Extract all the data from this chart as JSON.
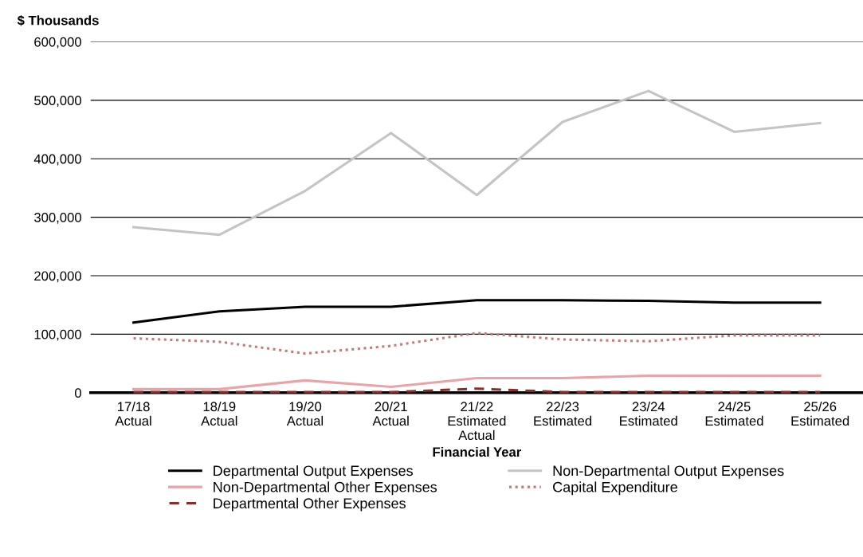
{
  "chart_data": {
    "type": "line",
    "ylabel": "$ Thousands",
    "xlabel": "Financial Year",
    "categories": [
      "17/18\nActual",
      "18/19\nActual",
      "19/20\nActual",
      "20/21\nActual",
      "21/22\nEstimated\nActual",
      "22/23\nEstimated",
      "23/24\nEstimated",
      "24/25\nEstimated",
      "25/26\nEstimated"
    ],
    "series": [
      {
        "name": "Departmental Output Expenses",
        "color": "#000000",
        "line_style": "solid",
        "values": [
          120000,
          139000,
          147000,
          147000,
          158000,
          158000,
          157000,
          154000,
          154000
        ]
      },
      {
        "name": "Non-Departmental Other Expenses",
        "color": "#e8a4a8",
        "line_style": "solid",
        "values": [
          6000,
          6000,
          21000,
          10000,
          25000,
          25000,
          29000,
          29000,
          29000
        ]
      },
      {
        "name": "Departmental Other Expenses",
        "color": "#8b2c2c",
        "line_style": "dashed",
        "values": [
          1000,
          1000,
          1000,
          1000,
          7000,
          1000,
          1000,
          1000,
          1000
        ]
      },
      {
        "name": "Non-Departmental Output Expenses",
        "color": "#c4c4c4",
        "line_style": "solid",
        "values": [
          283000,
          270000,
          345000,
          444000,
          338000,
          463000,
          516000,
          446000,
          461000
        ]
      },
      {
        "name": "Capital Expenditure",
        "color": "#c87878",
        "line_style": "dotted",
        "values": [
          93000,
          87000,
          67000,
          80000,
          102000,
          91000,
          88000,
          98000,
          98000
        ]
      }
    ],
    "ylim": [
      0,
      600000
    ],
    "yticks": [
      {
        "value": 0,
        "label": "0"
      },
      {
        "value": 100000,
        "label": "100,000"
      },
      {
        "value": 200000,
        "label": "200,000"
      },
      {
        "value": 300000,
        "label": "300,000"
      },
      {
        "value": 400000,
        "label": "400,000"
      },
      {
        "value": 500000,
        "label": "500,000"
      },
      {
        "value": 600000,
        "label": "600,000"
      }
    ],
    "grid": "y",
    "legend": "bottom",
    "marker": "none"
  }
}
